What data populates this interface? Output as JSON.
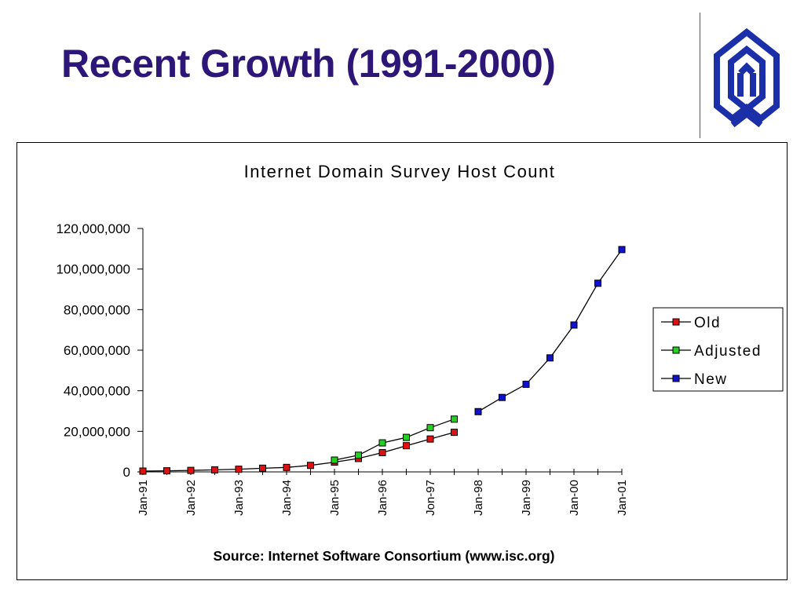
{
  "slide": {
    "title": "Recent Growth (1991-2000)"
  },
  "logo": {
    "icon": "institution-logo-icon",
    "color": "#1a2fa8"
  },
  "chart_data": {
    "type": "line",
    "title": "Internet Domain Survey Host Count",
    "source": "Source: Internet Software Consortium (www.isc.org)",
    "xlabel": "",
    "ylabel": "",
    "ylim": [
      0,
      120000000
    ],
    "yticks": [
      0,
      20000000,
      40000000,
      60000000,
      80000000,
      100000000,
      120000000
    ],
    "ytick_labels": [
      "0",
      "20,000,000",
      "40,000,000",
      "60,000,000",
      "80,000,000",
      "100,000,000",
      "120,000,000"
    ],
    "x_labels": [
      "Jan-91",
      "Jan-92",
      "Jan-93",
      "Jan-94",
      "Jan-95",
      "Jan-96",
      "Jon-97",
      "Jan-98",
      "Jan-99",
      "Jan-00",
      "Jan-01"
    ],
    "x_label_index": [
      0,
      2,
      4,
      6,
      8,
      10,
      12,
      14,
      16,
      18,
      20
    ],
    "grid": false,
    "legend_position": "right",
    "series": [
      {
        "name": "Old",
        "color": "#e01010",
        "points": [
          [
            0,
            380000
          ],
          [
            1,
            530000
          ],
          [
            2,
            730000
          ],
          [
            3,
            990000
          ],
          [
            4,
            1300000
          ],
          [
            5,
            1800000
          ],
          [
            6,
            2200000
          ],
          [
            7,
            3200000
          ],
          [
            8,
            4800000
          ],
          [
            9,
            6600000
          ],
          [
            10,
            9500000
          ],
          [
            11,
            12900000
          ],
          [
            12,
            16200000
          ],
          [
            13,
            19500000
          ]
        ]
      },
      {
        "name": "Adjusted",
        "color": "#22d022",
        "points": [
          [
            8,
            5800000
          ],
          [
            9,
            8200000
          ],
          [
            10,
            14300000
          ],
          [
            11,
            17000000
          ],
          [
            12,
            21800000
          ],
          [
            13,
            26000000
          ]
        ]
      },
      {
        "name": "New",
        "color": "#1010d0",
        "points": [
          [
            14,
            29700000
          ],
          [
            15,
            36700000
          ],
          [
            16,
            43200000
          ],
          [
            17,
            56200000
          ],
          [
            18,
            72400000
          ],
          [
            19,
            93000000
          ],
          [
            20,
            109600000
          ]
        ]
      }
    ]
  }
}
